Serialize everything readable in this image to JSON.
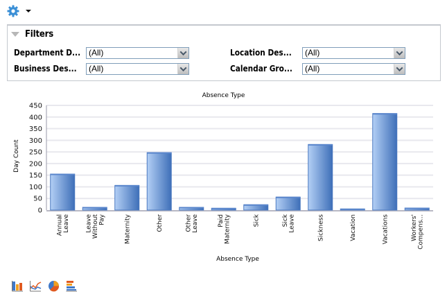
{
  "toolbar": {
    "settings_icon": "gear-icon",
    "dropdown_icon": "caret-down-icon"
  },
  "filters": {
    "title": "Filters",
    "fields": [
      {
        "label": "Department D...",
        "value": "(All)"
      },
      {
        "label": "Business Des...",
        "value": "(All)"
      },
      {
        "label": "Location Des...",
        "value": "(All)"
      },
      {
        "label": "Calendar Gro...",
        "value": "(All)"
      }
    ]
  },
  "colors": {
    "bar_light": "#b3cff5",
    "bar_dark": "#3e6fb8",
    "bar_edge": "#4a78bf",
    "grid": "#e8e8ee",
    "axis": "#9a9aa8"
  },
  "chart_data": {
    "type": "bar",
    "title": "Absence Type",
    "xlabel": "Absence Type",
    "ylabel": "Day Count",
    "ylim": [
      0,
      450
    ],
    "yticks": [
      0,
      50,
      100,
      150,
      200,
      250,
      300,
      350,
      400,
      450
    ],
    "grid": true,
    "legend": "none",
    "categories": [
      "Annual Leave",
      "Leave Without Pay",
      "Maternity",
      "Other",
      "Other Leave",
      "Paid Maternity",
      "Sick",
      "Sick Leave",
      "Sickness",
      "Vacation",
      "Vacations",
      "Workers' Compens..."
    ],
    "category_lines": [
      [
        "Annual",
        "Leave"
      ],
      [
        "Leave",
        "Without",
        "Pay"
      ],
      [
        "Maternity"
      ],
      [
        "Other"
      ],
      [
        "Other",
        "Leave"
      ],
      [
        "Paid",
        "Maternity"
      ],
      [
        "Sick"
      ],
      [
        "Sick",
        "Leave"
      ],
      [
        "Sickness"
      ],
      [
        "Vacation"
      ],
      [
        "Vacations"
      ],
      [
        "Workers'",
        "Compens..."
      ]
    ],
    "values": [
      155,
      12,
      106,
      247,
      12,
      8,
      23,
      56,
      282,
      5,
      415,
      9
    ]
  },
  "chart_type_buttons": [
    {
      "name": "bar-chart-icon",
      "label": "Bar chart"
    },
    {
      "name": "line-chart-icon",
      "label": "Line chart"
    },
    {
      "name": "pie-chart-icon",
      "label": "Pie chart"
    },
    {
      "name": "horizontal-bar-chart-icon",
      "label": "Horizontal bar chart"
    }
  ]
}
